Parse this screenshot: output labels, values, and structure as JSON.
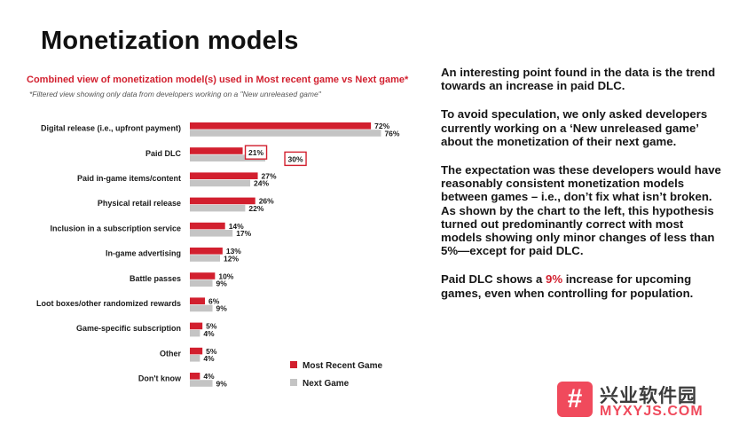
{
  "title": "Monetization models",
  "chart_data": {
    "type": "bar",
    "orientation": "horizontal",
    "title": "Combined view of monetization model(s) used in Most recent game vs Next game*",
    "subtitle": "*Filtered view showing only data from developers working on a \"New unreleased game\"",
    "categories": [
      "Digital release (i.e., upfront payment)",
      "Paid DLC",
      "Paid in-game items/content",
      "Physical retail release",
      "Inclusion in a subscription service",
      "In-game advertising",
      "Battle passes",
      "Loot boxes/other randomized rewards",
      "Game-specific subscription",
      "Other",
      "Don't know"
    ],
    "series": [
      {
        "name": "Most Recent Game",
        "color": "#d21f2e",
        "values": [
          72,
          21,
          27,
          26,
          14,
          13,
          10,
          6,
          5,
          5,
          4
        ],
        "labels": [
          "72%",
          "21%",
          "27%",
          "26%",
          "14%",
          "13%",
          "10%",
          "6%",
          "5%",
          "5%",
          "4%"
        ]
      },
      {
        "name": "Next Game",
        "color": "#c4c4c4",
        "values": [
          76,
          30,
          24,
          22,
          17,
          12,
          9,
          9,
          4,
          4,
          9
        ],
        "labels": [
          "76%",
          "30%",
          "24%",
          "22%",
          "17%",
          "12%",
          "9%",
          "9%",
          "4%",
          "4%",
          "9%"
        ]
      }
    ],
    "highlighted": [
      {
        "series": 0,
        "category": 1
      },
      {
        "series": 1,
        "category": 1
      }
    ],
    "xlim": [
      0,
      80
    ],
    "grid": false,
    "legend": "bottom-right"
  },
  "commentary": {
    "p1": "An interesting point found in the data is the trend towards an increase in paid DLC.",
    "p2": "To avoid speculation, we only asked developers currently working on a ‘New unreleased game’ about the monetization of their next game.",
    "p3": "The expectation was these developers would have reasonably consistent monetization models between games – i.e., don’t fix what isn’t broken. As shown by the chart to the left, this hypothesis turned out predominantly correct with most models showing only minor changes of less than 5%—except for paid DLC.",
    "p4_before": "Paid DLC shows a ",
    "p4_highlight": "9%",
    "p4_after": " increase for upcoming games, even when controlling for population."
  },
  "watermark": {
    "logo_glyph": "#",
    "text": "兴业软件园",
    "url": "MYXYJS.COM"
  }
}
